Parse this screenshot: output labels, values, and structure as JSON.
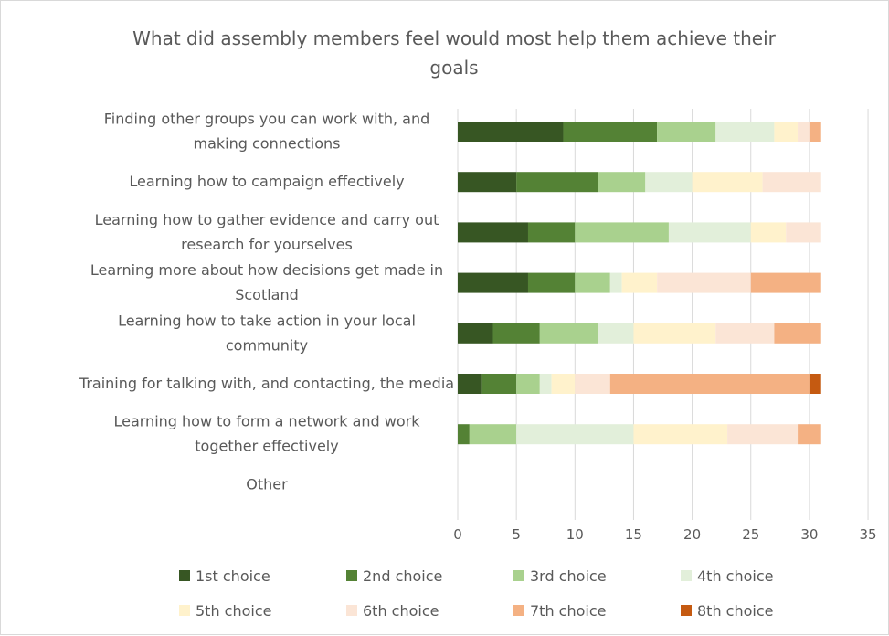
{
  "chart_data": {
    "type": "bar",
    "orientation": "horizontal",
    "stacked": true,
    "title_lines": [
      "What did assembly members feel would most help them achieve their",
      "goals"
    ],
    "categories": [
      [
        "Finding other groups you can work with, and",
        "making connections"
      ],
      [
        "Learning how to campaign effectively"
      ],
      [
        "Learning how to gather evidence and carry out",
        "research for yourselves"
      ],
      [
        "Learning more about how decisions get made in",
        "Scotland"
      ],
      [
        "Learning how to take action in your local",
        "community"
      ],
      [
        "Training for talking with, and contacting, the media"
      ],
      [
        "Learning how to form a network and work",
        "together effectively"
      ],
      [
        "Other"
      ]
    ],
    "series": [
      {
        "name": "1st choice",
        "color": "#375623",
        "values": [
          9,
          5,
          6,
          6,
          3,
          2,
          0,
          0
        ]
      },
      {
        "name": "2nd choice",
        "color": "#548235",
        "values": [
          8,
          7,
          4,
          4,
          4,
          3,
          1,
          0
        ]
      },
      {
        "name": "3rd choice",
        "color": "#a9d18e",
        "values": [
          5,
          4,
          8,
          3,
          5,
          2,
          4,
          0
        ]
      },
      {
        "name": "4th choice",
        "color": "#e2efda",
        "values": [
          5,
          4,
          7,
          1,
          3,
          1,
          10,
          0
        ]
      },
      {
        "name": "5th choice",
        "color": "#fff2cc",
        "values": [
          2,
          6,
          3,
          3,
          7,
          2,
          8,
          0
        ]
      },
      {
        "name": "6th choice",
        "color": "#fbe5d6",
        "values": [
          1,
          5,
          3,
          8,
          5,
          3,
          6,
          0
        ]
      },
      {
        "name": "7th choice",
        "color": "#f4b183",
        "values": [
          1,
          0,
          0,
          6,
          4,
          17,
          2,
          0
        ]
      },
      {
        "name": "8th choice",
        "color": "#c55a11",
        "values": [
          0,
          0,
          0,
          0,
          0,
          1,
          0,
          0
        ]
      }
    ],
    "xlim": [
      0,
      35
    ],
    "xticks": [
      0,
      5,
      10,
      15,
      20,
      25,
      30,
      35
    ],
    "grid": "vertical",
    "legend_position": "bottom"
  }
}
